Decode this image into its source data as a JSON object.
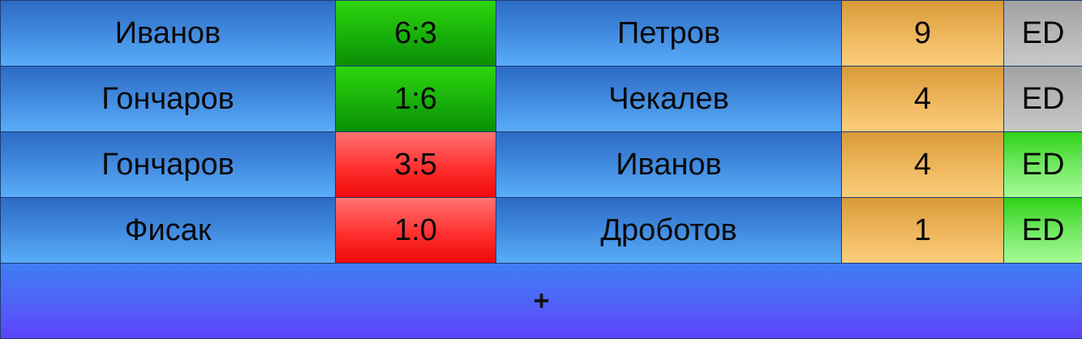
{
  "matches": [
    {
      "player1": "Иванов",
      "score": "6:3",
      "score_status": "win",
      "player2": "Петров",
      "points": "9",
      "ed_label": "ED",
      "ed_state": "gray"
    },
    {
      "player1": "Гончаров",
      "score": "1:6",
      "score_status": "win",
      "player2": "Чекалев",
      "points": "4",
      "ed_label": "ED",
      "ed_state": "gray"
    },
    {
      "player1": "Гончаров",
      "score": "3:5",
      "score_status": "loss",
      "player2": "Иванов",
      "points": "4",
      "ed_label": "ED",
      "ed_state": "green"
    },
    {
      "player1": "Фисак",
      "score": "1:0",
      "score_status": "loss",
      "player2": "Дроботов",
      "points": "1",
      "ed_label": "ED",
      "ed_state": "green"
    }
  ],
  "add_button": {
    "label": "+"
  },
  "colors": {
    "name_cell": "#3f87dc",
    "score_win": "#17b00a",
    "score_loss": "#ff3030",
    "points_cell": "#edb55b",
    "ed_gray": "#b6b6b6",
    "ed_green": "#6fe860",
    "add_bar": "#4f64f6"
  }
}
